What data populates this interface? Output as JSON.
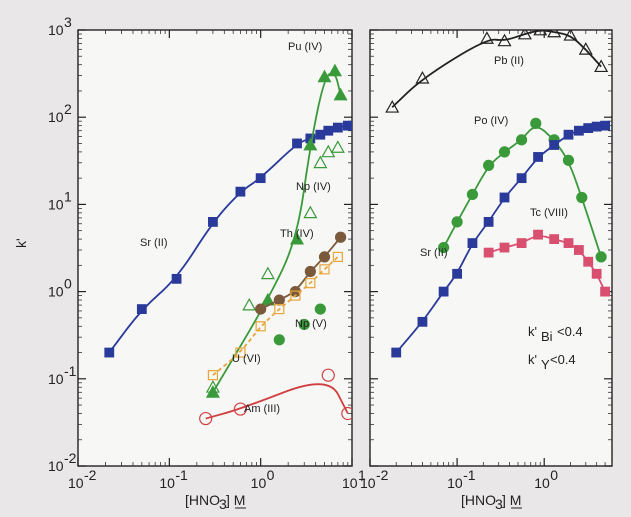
{
  "chart_data": [
    {
      "type": "scatter",
      "xscale": "log",
      "yscale": "log",
      "xlim": [
        0.01,
        10
      ],
      "ylim": [
        0.01,
        1000
      ],
      "xticks": [
        0.01,
        0.1,
        1,
        10
      ],
      "yticks": [
        0.01,
        0.1,
        1,
        10,
        100,
        1000
      ],
      "xtick_labels": [
        "10",
        "10",
        "10",
        "10"
      ],
      "xtick_exponents": [
        "-2",
        "-1",
        "0",
        "1"
      ],
      "ytick_labels": [
        "10",
        "10",
        "10",
        "10",
        "10",
        "10"
      ],
      "ytick_exponents": [
        "-2",
        "-1",
        "0",
        "1",
        "2",
        "3"
      ],
      "xlabel": "[HNO",
      "xlabel_sub": "3",
      "xlabel_unit": "] M",
      "ylabel": "k'",
      "series": [
        {
          "name": "Sr (II)",
          "color": "#2a3a9a",
          "marker": "square-filled",
          "fit": true,
          "x": [
            0.022,
            0.05,
            0.12,
            0.3,
            0.6,
            1.0,
            2.5,
            3.5,
            4.5,
            5.5,
            7.0,
            9.0
          ],
          "y": [
            0.2,
            0.63,
            1.4,
            6.3,
            14,
            20,
            50,
            57,
            63,
            70,
            76,
            80
          ]
        },
        {
          "name": "Pu (IV)",
          "color": "#3a9a3a",
          "marker": "triangle-filled",
          "fit": true,
          "x": [
            0.3,
            1.2,
            2.5,
            3.5,
            5.0,
            6.5,
            7.5
          ],
          "y": [
            0.07,
            0.8,
            4,
            48,
            290,
            340,
            180
          ]
        },
        {
          "name": "Np (IV)",
          "color": "#3a9a3a",
          "marker": "triangle-open",
          "fit": false,
          "x": [
            0.3,
            0.75,
            1.2,
            3.5,
            4.5,
            5.5,
            7
          ],
          "y": [
            0.08,
            0.7,
            1.6,
            8,
            30,
            40,
            45
          ]
        },
        {
          "name": "Th (IV)",
          "color": "#7a5a3a",
          "marker": "circle-filled",
          "fit": true,
          "x": [
            1.0,
            1.6,
            2.4,
            3.5,
            5.0,
            7.5
          ],
          "y": [
            0.63,
            0.8,
            1.0,
            1.7,
            2.5,
            4.2
          ]
        },
        {
          "name": "Np (V)",
          "color": "#3a9a3a",
          "marker": "circle-filled",
          "fit": false,
          "x": [
            1.6,
            3.0,
            4.5
          ],
          "y": [
            0.28,
            0.42,
            0.63
          ]
        },
        {
          "name": "U (VI)",
          "color": "#e8a53a",
          "marker": "square-open",
          "fit": true,
          "x": [
            0.3,
            0.6,
            1.0,
            1.6,
            2.4,
            3.5,
            5.0,
            7.0
          ],
          "y": [
            0.11,
            0.2,
            0.4,
            0.63,
            0.9,
            1.25,
            1.8,
            2.5
          ]
        },
        {
          "name": "Am (III)",
          "color": "#d04040",
          "marker": "circle-open",
          "fit": true,
          "x": [
            0.25,
            0.6,
            5.5,
            9.0
          ],
          "y": [
            0.035,
            0.045,
            0.11,
            0.04
          ]
        }
      ]
    },
    {
      "type": "scatter",
      "xscale": "log",
      "yscale": "log",
      "xlim": [
        0.01,
        6
      ],
      "ylim": [
        0.01,
        1000
      ],
      "xticks": [
        0.01,
        0.1,
        1
      ],
      "yticks": [
        0.01,
        0.1,
        1,
        10,
        100,
        1000
      ],
      "xtick_labels": [
        "10",
        "10",
        "10"
      ],
      "xtick_exponents": [
        "-2",
        "-1",
        "0"
      ],
      "xlabel": "[HNO",
      "xlabel_sub": "3",
      "xlabel_unit": "] M",
      "series": [
        {
          "name": "Pb (II)",
          "color": "#222222",
          "marker": "triangle-open",
          "fit": true,
          "x": [
            0.018,
            0.04,
            0.22,
            0.35,
            0.6,
            0.9,
            1.3,
            2.0,
            3.0,
            4.5
          ],
          "y": [
            130,
            280,
            800,
            750,
            900,
            1000,
            950,
            870,
            600,
            380
          ]
        },
        {
          "name": "Po (IV)",
          "color": "#3a9a3a",
          "marker": "circle-filled",
          "fit": true,
          "x": [
            0.07,
            0.1,
            0.15,
            0.23,
            0.35,
            0.55,
            0.8,
            1.3,
            1.9,
            2.7,
            4.5
          ],
          "y": [
            3.2,
            6.3,
            13,
            28,
            40,
            55,
            85,
            55,
            32,
            12,
            2.5
          ]
        },
        {
          "name": "Sr (II)",
          "color": "#2a3a9a",
          "marker": "square-filled",
          "fit": true,
          "x": [
            0.02,
            0.04,
            0.07,
            0.1,
            0.15,
            0.23,
            0.35,
            0.55,
            0.85,
            1.3,
            1.9,
            2.5,
            3.2,
            4.0,
            5.0
          ],
          "y": [
            0.2,
            0.45,
            1.0,
            1.6,
            3.6,
            6.3,
            12,
            20,
            35,
            48,
            63,
            70,
            75,
            78,
            80
          ]
        },
        {
          "name": "Tc (VIII)",
          "color": "#d94f6f",
          "marker": "square-filled",
          "fit": true,
          "x": [
            0.23,
            0.35,
            0.55,
            0.85,
            1.3,
            1.9,
            2.5,
            3.2,
            4.0,
            5.0
          ],
          "y": [
            2.8,
            3.2,
            3.6,
            4.5,
            4.0,
            3.6,
            3.0,
            2.2,
            1.6,
            1.0
          ]
        }
      ],
      "annotations": [
        {
          "label": "k'",
          "subscript": "Bi",
          "text": "<0.4"
        },
        {
          "label": "k'",
          "subscript": "Y",
          "text": "<0.4"
        }
      ]
    }
  ]
}
